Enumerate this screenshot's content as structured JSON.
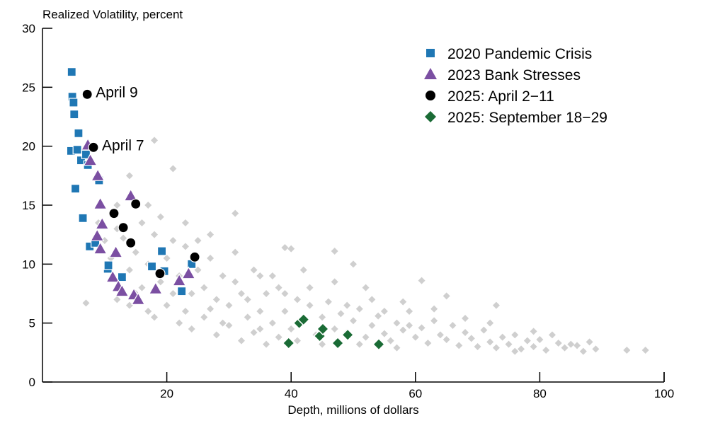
{
  "chart_data": {
    "type": "scatter",
    "ylabel": "Realized Volatility, percent",
    "xlabel": "Depth, millions of dollars",
    "xlim": [
      0,
      100
    ],
    "ylim": [
      0,
      30
    ],
    "xticks": [
      20,
      40,
      60,
      80,
      100
    ],
    "yticks": [
      0,
      5,
      10,
      15,
      20,
      25,
      30
    ],
    "grid": false,
    "legend_position": "top-right",
    "background": {
      "color": "#cfcfcf",
      "points": [
        [
          7,
          6.7
        ],
        [
          18,
          20.5
        ],
        [
          21,
          18.1
        ],
        [
          31,
          14.3
        ],
        [
          39,
          11.4
        ],
        [
          47,
          11.1
        ],
        [
          40,
          11.3
        ],
        [
          61,
          8.6
        ],
        [
          65,
          7.3
        ],
        [
          73,
          6.5
        ],
        [
          82,
          4.0
        ],
        [
          85,
          3.2
        ],
        [
          89,
          2.8
        ],
        [
          94,
          2.7
        ],
        [
          97,
          2.7
        ],
        [
          10,
          12
        ],
        [
          11,
          10.5
        ],
        [
          12,
          13
        ],
        [
          13,
          12.2
        ],
        [
          14,
          9.5
        ],
        [
          15,
          11
        ],
        [
          16,
          13.5
        ],
        [
          17,
          10
        ],
        [
          18,
          12.5
        ],
        [
          19,
          8.5
        ],
        [
          20,
          10.5
        ],
        [
          21,
          12
        ],
        [
          22,
          9
        ],
        [
          23,
          11.5
        ],
        [
          24,
          7.5
        ],
        [
          25,
          9.5
        ],
        [
          26,
          8
        ],
        [
          27,
          10.5
        ],
        [
          28,
          7
        ],
        [
          29,
          9
        ],
        [
          30,
          6.5
        ],
        [
          31,
          8.5
        ],
        [
          32,
          7.5
        ],
        [
          33,
          5.5
        ],
        [
          34,
          9.5
        ],
        [
          35,
          6
        ],
        [
          36,
          7.5
        ],
        [
          37,
          5
        ],
        [
          38,
          8
        ],
        [
          39,
          6
        ],
        [
          40,
          4.5
        ],
        [
          41,
          7
        ],
        [
          42,
          5.5
        ],
        [
          43,
          6.5
        ],
        [
          44,
          4
        ],
        [
          45,
          5.5
        ],
        [
          46,
          6.8
        ],
        [
          47,
          4.5
        ],
        [
          48,
          5.8
        ],
        [
          49,
          4.2
        ],
        [
          50,
          5.2
        ],
        [
          51,
          6.2
        ],
        [
          52,
          3.8
        ],
        [
          53,
          4.8
        ],
        [
          54,
          5.6
        ],
        [
          55,
          4.1
        ],
        [
          56,
          3.5
        ],
        [
          57,
          5
        ],
        [
          58,
          4.4
        ],
        [
          59,
          6
        ],
        [
          60,
          3.8
        ],
        [
          61,
          4.6
        ],
        [
          62,
          3.3
        ],
        [
          63,
          5.2
        ],
        [
          64,
          4
        ],
        [
          65,
          3.6
        ],
        [
          66,
          4.8
        ],
        [
          67,
          3.1
        ],
        [
          68,
          4.2
        ],
        [
          69,
          3.7
        ],
        [
          70,
          3
        ],
        [
          71,
          4.4
        ],
        [
          72,
          3.4
        ],
        [
          73,
          2.9
        ],
        [
          74,
          3.8
        ],
        [
          75,
          3.2
        ],
        [
          76,
          4
        ],
        [
          77,
          2.8
        ],
        [
          78,
          3.5
        ],
        [
          79,
          3
        ],
        [
          80,
          3.6
        ],
        [
          81,
          2.7
        ],
        [
          83,
          3.3
        ],
        [
          84,
          2.9
        ],
        [
          86,
          3.1
        ],
        [
          87,
          2.6
        ],
        [
          88,
          3.4
        ],
        [
          12,
          7
        ],
        [
          14,
          6.5
        ],
        [
          16,
          8
        ],
        [
          18,
          5.5
        ],
        [
          20,
          6.5
        ],
        [
          22,
          5
        ],
        [
          24,
          4.5
        ],
        [
          26,
          5.5
        ],
        [
          28,
          4
        ],
        [
          30,
          4.8
        ],
        [
          32,
          3.5
        ],
        [
          34,
          4.2
        ],
        [
          36,
          3.2
        ],
        [
          38,
          3.8
        ],
        [
          13,
          9
        ],
        [
          15,
          7.5
        ],
        [
          17,
          6
        ],
        [
          19,
          11
        ],
        [
          21,
          7.5
        ],
        [
          23,
          6
        ],
        [
          25,
          12
        ],
        [
          27,
          6.2
        ],
        [
          29,
          5
        ],
        [
          31,
          11
        ],
        [
          33,
          7
        ],
        [
          35,
          4.5
        ],
        [
          37,
          9
        ],
        [
          39,
          7.5
        ],
        [
          41,
          3.5
        ],
        [
          43,
          8
        ],
        [
          45,
          3.2
        ],
        [
          47,
          8.5
        ],
        [
          49,
          6.5
        ],
        [
          51,
          3.2
        ],
        [
          53,
          7
        ],
        [
          55,
          6
        ],
        [
          57,
          2.9
        ],
        [
          59,
          4.8
        ],
        [
          17,
          15
        ],
        [
          19,
          14
        ],
        [
          23,
          13.5
        ],
        [
          27,
          12.5
        ],
        [
          14,
          17.5
        ],
        [
          12,
          15
        ],
        [
          9,
          13.5
        ],
        [
          35,
          9
        ],
        [
          42,
          9.5
        ],
        [
          52,
          8
        ],
        [
          58,
          6.8
        ],
        [
          63,
          6.2
        ],
        [
          68,
          5.4
        ],
        [
          72,
          5
        ],
        [
          76,
          2.6
        ],
        [
          79,
          4.3
        ],
        [
          50,
          10
        ]
      ]
    },
    "series": [
      {
        "name": "2020 Pandemic Crisis",
        "marker": "square",
        "color": "#1f77b4",
        "points": [
          [
            4.7,
            26.3
          ],
          [
            4.8,
            24.2
          ],
          [
            5.0,
            23.7
          ],
          [
            5.1,
            22.7
          ],
          [
            5.8,
            21.1
          ],
          [
            4.6,
            19.6
          ],
          [
            5.6,
            19.7
          ],
          [
            6.2,
            18.8
          ],
          [
            7.3,
            18.4
          ],
          [
            7.0,
            19.3
          ],
          [
            9.1,
            17.1
          ],
          [
            5.3,
            16.4
          ],
          [
            6.5,
            13.9
          ],
          [
            7.6,
            11.5
          ],
          [
            8.5,
            11.8
          ],
          [
            10.5,
            9.6
          ],
          [
            10.6,
            9.9
          ],
          [
            12.8,
            8.9
          ],
          [
            19.2,
            11.1
          ],
          [
            17.6,
            9.8
          ],
          [
            19.6,
            9.4
          ],
          [
            24.0,
            10.0
          ],
          [
            22.4,
            7.7
          ]
        ]
      },
      {
        "name": "2023 Bank Stresses",
        "marker": "triangle",
        "color": "#7b4fa2",
        "points": [
          [
            7.3,
            20.1
          ],
          [
            7.7,
            18.8
          ],
          [
            8.9,
            17.5
          ],
          [
            14.2,
            15.8
          ],
          [
            9.3,
            15.1
          ],
          [
            9.6,
            13.4
          ],
          [
            8.8,
            12.4
          ],
          [
            9.3,
            11.3
          ],
          [
            11.8,
            11.0
          ],
          [
            11.3,
            8.9
          ],
          [
            12.2,
            8.1
          ],
          [
            12.8,
            7.7
          ],
          [
            14.7,
            7.4
          ],
          [
            15.4,
            7.0
          ],
          [
            18.2,
            7.9
          ],
          [
            22.0,
            8.6
          ],
          [
            23.5,
            9.2
          ]
        ]
      },
      {
        "name": "2025: April 2−11",
        "marker": "circle",
        "color": "#000000",
        "points": [
          [
            7.2,
            24.4
          ],
          [
            8.2,
            19.9
          ],
          [
            15.0,
            15.1
          ],
          [
            11.5,
            14.3
          ],
          [
            13.0,
            13.1
          ],
          [
            14.2,
            11.8
          ],
          [
            24.5,
            10.6
          ],
          [
            18.9,
            9.2
          ]
        ]
      },
      {
        "name": "2025: September 18−29",
        "marker": "diamond",
        "color": "#1a6b35",
        "points": [
          [
            39.6,
            3.3
          ],
          [
            41.3,
            5.0
          ],
          [
            42.0,
            5.3
          ],
          [
            44.6,
            3.9
          ],
          [
            45.1,
            4.5
          ],
          [
            47.5,
            3.3
          ],
          [
            49.1,
            4.0
          ],
          [
            54.1,
            3.2
          ]
        ]
      }
    ],
    "annotations": [
      {
        "text": "April 9",
        "x": 7.2,
        "y": 24.4
      },
      {
        "text": "April 7",
        "x": 8.2,
        "y": 19.9
      }
    ]
  }
}
